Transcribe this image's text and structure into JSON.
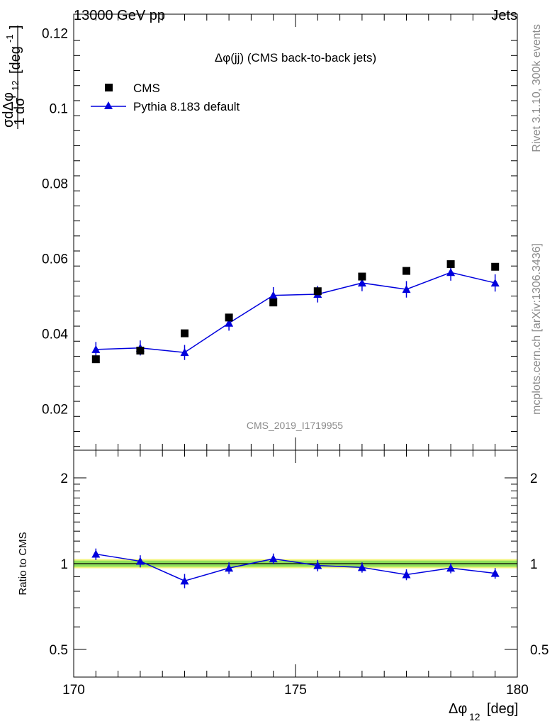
{
  "header": {
    "energy_label": "13000 GeV pp",
    "process_label": "Jets"
  },
  "side_labels": {
    "rivet": "Rivet 3.1.10,  300k events",
    "source": "mcplots.cern.ch [arXiv:1306.3436]"
  },
  "watermark": "CMS_2019_I1719955",
  "chart_data": [
    {
      "type": "scatter",
      "title": "Δφ(jj) (CMS back-to-back jets)",
      "ylabel": "1/σ dσ/dΔφ₁₂ [deg⁻¹]",
      "xlim": [
        170,
        180
      ],
      "ylim": [
        0.009,
        0.125
      ],
      "y_ticks": [
        "0.02",
        "0.04",
        "0.06",
        "0.08",
        "0.1",
        "0.12"
      ],
      "legend_position": "top-left",
      "series": [
        {
          "name": "CMS",
          "color": "#000000",
          "marker": "square",
          "x": [
            170.5,
            171.5,
            172.5,
            173.5,
            174.5,
            175.5,
            176.5,
            177.5,
            178.5,
            179.5
          ],
          "y": [
            0.0332,
            0.0355,
            0.0401,
            0.0443,
            0.0483,
            0.0513,
            0.0552,
            0.0567,
            0.0585,
            0.0578
          ]
        },
        {
          "name": "Pythia 8.183 default",
          "color": "#0000dd",
          "marker": "triangle",
          "x": [
            170.5,
            171.5,
            172.5,
            173.5,
            174.5,
            175.5,
            176.5,
            177.5,
            178.5,
            179.5
          ],
          "y": [
            0.0358,
            0.0362,
            0.035,
            0.0428,
            0.0502,
            0.0505,
            0.0535,
            0.0518,
            0.0563,
            0.0535
          ],
          "err": [
            0.002,
            0.002,
            0.002,
            0.002,
            0.0022,
            0.0022,
            0.0022,
            0.0022,
            0.0022,
            0.0023
          ]
        }
      ]
    },
    {
      "type": "line",
      "ylabel": "Ratio to CMS",
      "xlabel": "Δφ₁₂ [deg]",
      "xlim": [
        170,
        180
      ],
      "x_ticks": [
        "170",
        "175",
        "180"
      ],
      "ylim": [
        0.4,
        2.5
      ],
      "y_scale": "log",
      "y_ticks": [
        "0.5",
        "1",
        "2"
      ],
      "band_color": "#f2f57e",
      "band_inner_color": "#8fe05a",
      "series": [
        {
          "name": "Pythia 8.183 default",
          "color": "#0000dd",
          "x": [
            170.5,
            171.5,
            172.5,
            173.5,
            174.5,
            175.5,
            176.5,
            177.5,
            178.5,
            179.5
          ],
          "y": [
            1.08,
            1.02,
            0.87,
            0.965,
            1.04,
            0.985,
            0.97,
            0.915,
            0.965,
            0.925
          ],
          "err": [
            0.05,
            0.05,
            0.05,
            0.045,
            0.045,
            0.045,
            0.04,
            0.04,
            0.04,
            0.04
          ]
        }
      ],
      "band": {
        "x": [
          170,
          180
        ],
        "lo": 0.975,
        "hi": 1.025
      }
    }
  ]
}
